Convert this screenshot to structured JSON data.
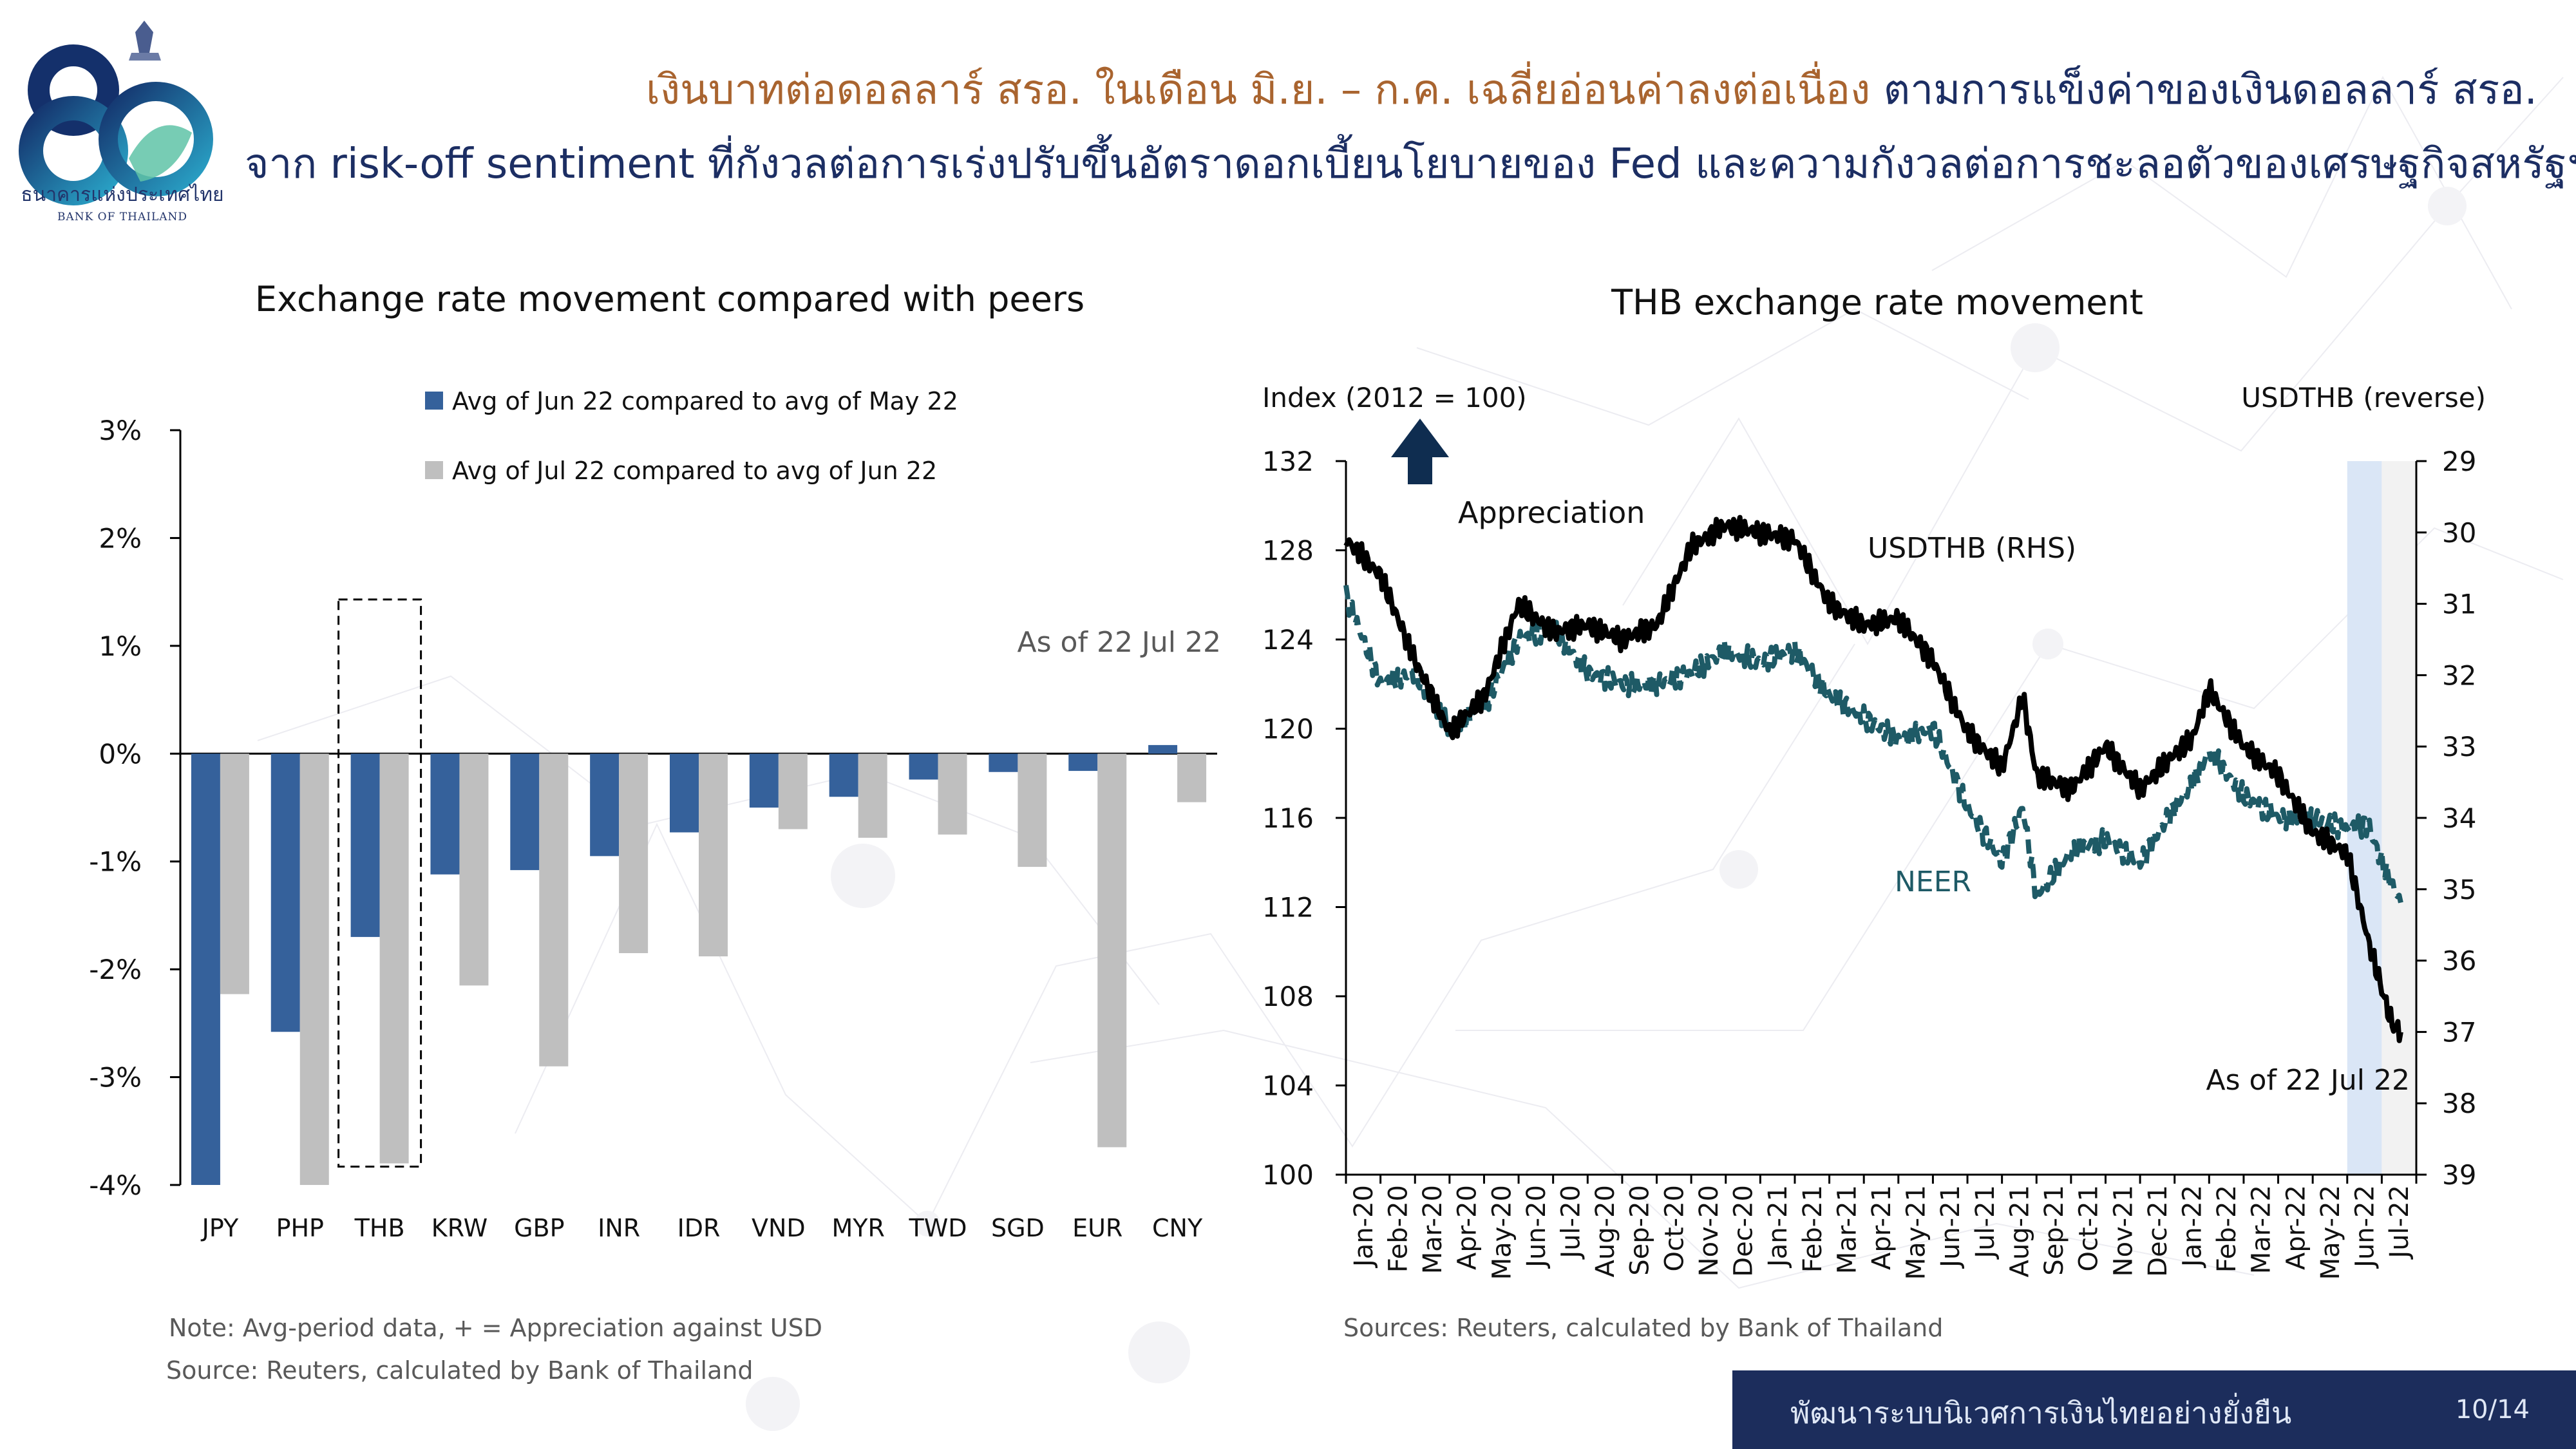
{
  "header": {
    "logo_org_th": "ธนาคารแห่งประเทศไทย",
    "logo_org_en": "BANK OF THAILAND",
    "headline_line1_accent": "เงินบาทต่อดอลลาร์ สรอ. ในเดือน มิ.ย. – ก.ค. เฉลี่ยอ่อนค่าลงต่อเนื่อง",
    "headline_line1_rest": "ตามการแข็งค่าของเงินดอลลาร์ สรอ.",
    "headline_line2": "จาก risk-off sentiment ที่กังวลต่อการเร่งปรับขึ้นอัตราดอกเบี้ยนโยบายของ Fed และความกังวลต่อการชะลอตัวของเศรษฐกิจสหรัฐฯ"
  },
  "left_panel": {
    "note": "Note: Avg-period data, + = Appreciation against USD",
    "source": "Source: Reuters, calculated by Bank of Thailand"
  },
  "right_panel": {
    "source": "Sources: Reuters, calculated by Bank of Thailand"
  },
  "footer": {
    "slogan": "พัฒนาระบบนิเวศการเงินไทยอย่างยั่งยืน",
    "page_number": "10/14"
  },
  "colors": {
    "navy": "#1c2e63",
    "bar_jun": "#35619b",
    "bar_jul": "#bfbfbf",
    "usdthb_line": "#000000",
    "neer_line": "#1e5a66",
    "shade_jun": "#dae6f6",
    "shade_jul": "#f2f2f2"
  },
  "chart_data": [
    {
      "type": "bar",
      "title": "Exchange rate movement compared with peers",
      "categories": [
        "JPY",
        "PHP",
        "THB",
        "KRW",
        "GBP",
        "INR",
        "IDR",
        "VND",
        "MYR",
        "TWD",
        "SGD",
        "EUR",
        "CNY"
      ],
      "series": [
        {
          "name": "Avg of Jun 22 compared to avg of May 22",
          "values": [
            -4.0,
            -2.58,
            -1.7,
            -1.12,
            -1.08,
            -0.95,
            -0.73,
            -0.5,
            -0.4,
            -0.24,
            -0.17,
            -0.16,
            0.08
          ]
        },
        {
          "name": "Avg of Jul 22 compared to avg of Jun 22",
          "values": [
            -2.23,
            -4.0,
            -3.8,
            -2.15,
            -2.9,
            -1.85,
            -1.88,
            -0.7,
            -0.78,
            -0.75,
            -1.05,
            -3.65,
            -0.45
          ]
        }
      ],
      "ylim": [
        -4,
        3
      ],
      "yticks": [
        "3%",
        "2%",
        "1%",
        "0%",
        "-1%",
        "-2%",
        "-3%",
        "-4%"
      ],
      "highlight_category": "THB",
      "annotation": "As of 22 Jul 22"
    },
    {
      "type": "line",
      "title": "THB exchange rate movement",
      "ylabel_left": "Index (2012 = 100)",
      "ylabel_right": "USDTHB (reverse)",
      "ylim_left": [
        100,
        132
      ],
      "ylim_right_reversed": [
        29,
        39
      ],
      "yticks_left": [
        "132",
        "128",
        "124",
        "120",
        "116",
        "112",
        "108",
        "104",
        "100"
      ],
      "yticks_right": [
        "29",
        "30",
        "31",
        "32",
        "33",
        "34",
        "35",
        "36",
        "37",
        "38",
        "39"
      ],
      "x": [
        "Jan-20",
        "Feb-20",
        "Mar-20",
        "Apr-20",
        "May-20",
        "Jun-20",
        "Jul-20",
        "Aug-20",
        "Sep-20",
        "Oct-20",
        "Nov-20",
        "Dec-20",
        "Jan-21",
        "Feb-21",
        "Mar-21",
        "Apr-21",
        "May-21",
        "Jun-21",
        "Jul-21",
        "Aug-21",
        "Sep-21",
        "Oct-21",
        "Nov-21",
        "Dec-21",
        "Jan-22",
        "Feb-22",
        "Mar-22",
        "Apr-22",
        "May-22",
        "Jun-22",
        "Jul-22"
      ],
      "series": [
        {
          "name": "USDTHB (RHS)",
          "axis": "right",
          "anchors": [
            [
              0,
              30.1
            ],
            [
              1,
              30.6
            ],
            [
              2,
              31.8
            ],
            [
              3,
              32.8
            ],
            [
              4,
              32.3
            ],
            [
              5,
              31.0
            ],
            [
              6,
              31.4
            ],
            [
              7,
              31.3
            ],
            [
              8,
              31.5
            ],
            [
              9,
              31.3
            ],
            [
              10,
              30.2
            ],
            [
              11,
              29.9
            ],
            [
              12,
              30.0
            ],
            [
              13,
              30.1
            ],
            [
              14,
              31.0
            ],
            [
              15,
              31.3
            ],
            [
              16,
              31.2
            ],
            [
              17,
              31.8
            ],
            [
              18,
              32.8
            ],
            [
              19,
              33.3
            ],
            [
              19.6,
              32.3
            ],
            [
              20,
              33.4
            ],
            [
              21,
              33.6
            ],
            [
              22,
              33.0
            ],
            [
              23,
              33.6
            ],
            [
              24,
              33.1
            ],
            [
              24.5,
              32.9
            ],
            [
              25,
              32.2
            ],
            [
              26,
              33.0
            ],
            [
              27,
              33.4
            ],
            [
              28,
              34.2
            ],
            [
              29,
              34.5
            ],
            [
              29.6,
              35.7
            ],
            [
              30,
              36.4
            ],
            [
              30.3,
              36.9
            ],
            [
              30.55,
              37.0
            ]
          ]
        },
        {
          "name": "NEER",
          "axis": "left",
          "dashed": true,
          "anchors": [
            [
              0,
              126
            ],
            [
              1,
              122
            ],
            [
              2,
              122.5
            ],
            [
              3,
              120
            ],
            [
              4,
              121
            ],
            [
              5,
              124
            ],
            [
              6,
              124.5
            ],
            [
              7,
              122.5
            ],
            [
              8,
              122
            ],
            [
              9,
              122
            ],
            [
              10,
              122.5
            ],
            [
              11,
              123.5
            ],
            [
              12,
              123
            ],
            [
              13,
              123.5
            ],
            [
              14,
              121.5
            ],
            [
              15,
              120.5
            ],
            [
              16,
              119.5
            ],
            [
              17,
              120
            ],
            [
              18,
              116.5
            ],
            [
              19,
              114
            ],
            [
              19.6,
              116.5
            ],
            [
              20,
              112.5
            ],
            [
              21,
              114.5
            ],
            [
              22,
              115
            ],
            [
              23,
              114
            ],
            [
              24,
              116.5
            ],
            [
              24.5,
              117.5
            ],
            [
              25,
              119
            ],
            [
              26,
              117
            ],
            [
              27,
              116
            ],
            [
              28,
              116
            ],
            [
              29,
              115.5
            ],
            [
              29.6,
              115.7
            ],
            [
              30,
              114
            ],
            [
              30.55,
              112.2
            ]
          ]
        }
      ],
      "labels": [
        "USDTHB (RHS)",
        "NEER",
        "Appreciation"
      ],
      "annotation": "As of 22 Jul 22",
      "shaded_periods": [
        "Jun-22",
        "Jul-22"
      ]
    }
  ]
}
